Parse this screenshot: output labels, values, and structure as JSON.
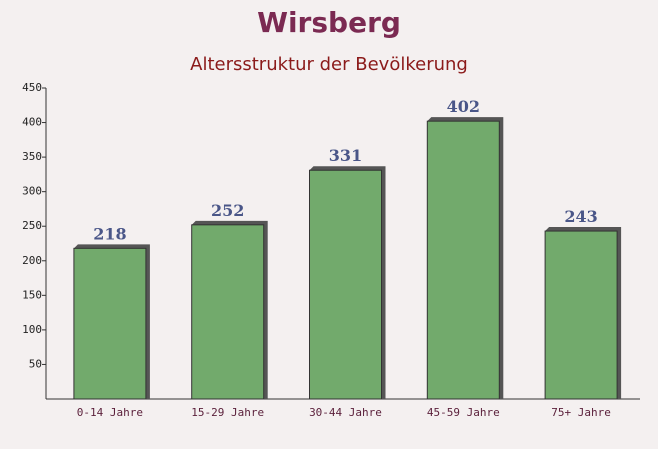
{
  "chart_data": {
    "type": "bar",
    "title": "Wirsberg",
    "subtitle": "Altersstruktur der Bevölkerung",
    "categories": [
      "0-14 Jahre",
      "15-29 Jahre",
      "30-44 Jahre",
      "45-59 Jahre",
      "75+ Jahre"
    ],
    "values": [
      218,
      252,
      331,
      402,
      243
    ],
    "color": "#6aa564",
    "ylim": [
      0,
      450
    ],
    "yticks": [
      50,
      100,
      150,
      200,
      250,
      300,
      350,
      400,
      450
    ]
  }
}
